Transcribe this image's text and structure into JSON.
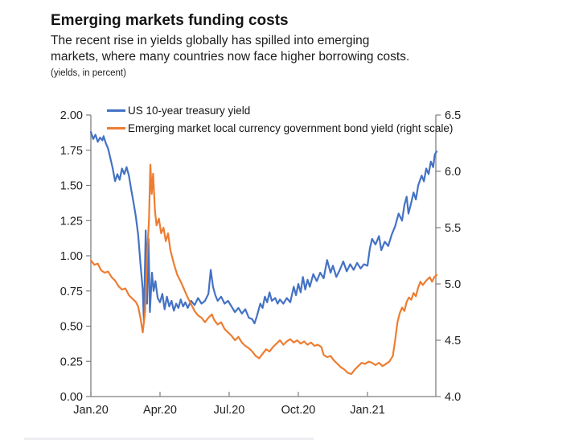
{
  "header": {
    "title": "Emerging markets funding costs",
    "subtitle_line1": "The recent rise in yields globally has spilled into emerging",
    "subtitle_line2": "markets, where many countries now face higher borrowing costs.",
    "note": "(yields, in percent)"
  },
  "legend": [
    {
      "label": "US 10-year treasury yield",
      "color": "#4472C4"
    },
    {
      "label": "Emerging market local currency government bond yield (right scale)",
      "color": "#ED7D31"
    }
  ],
  "chart_data": {
    "type": "line",
    "title": "Emerging markets funding costs",
    "x_unit": "months since Jan 2020",
    "grid": false,
    "legend_position": "top-left",
    "x_ticks": [
      {
        "m": 0,
        "label": "Jan.20"
      },
      {
        "m": 3,
        "label": "Apr.20"
      },
      {
        "m": 6,
        "label": "Jul.20"
      },
      {
        "m": 9,
        "label": "Oct.20"
      },
      {
        "m": 12,
        "label": "Jan.21"
      }
    ],
    "x_range_months": [
      0,
      15
    ],
    "left_axis": {
      "min": 0,
      "max": 2.0,
      "tick_values": [
        0,
        0.25,
        0.5,
        0.75,
        1.0,
        1.25,
        1.5,
        1.75,
        2.0
      ],
      "tick_labels": [
        "0.00",
        "0.25",
        "0.50",
        "0.75",
        "1.00",
        "1.25",
        "1.50",
        "1.75",
        "2.00"
      ]
    },
    "right_axis": {
      "min": 4.0,
      "max": 6.5,
      "tick_values": [
        4.0,
        4.5,
        5.0,
        5.5,
        6.0,
        6.5
      ],
      "tick_labels": [
        "4.0",
        "4.5",
        "5.0",
        "5.5",
        "6.0",
        "6.5"
      ]
    },
    "series": [
      {
        "name": "US 10-year treasury yield",
        "axis": "left",
        "color": "#4472C4",
        "points": [
          [
            0,
            1.88
          ],
          [
            0.1,
            1.83
          ],
          [
            0.2,
            1.86
          ],
          [
            0.3,
            1.81
          ],
          [
            0.4,
            1.84
          ],
          [
            0.5,
            1.82
          ],
          [
            0.55,
            1.85
          ],
          [
            0.65,
            1.8
          ],
          [
            0.75,
            1.76
          ],
          [
            0.85,
            1.69
          ],
          [
            0.95,
            1.62
          ],
          [
            1.05,
            1.53
          ],
          [
            1.15,
            1.58
          ],
          [
            1.25,
            1.54
          ],
          [
            1.35,
            1.62
          ],
          [
            1.45,
            1.58
          ],
          [
            1.55,
            1.63
          ],
          [
            1.65,
            1.57
          ],
          [
            1.75,
            1.47
          ],
          [
            1.85,
            1.38
          ],
          [
            1.95,
            1.28
          ],
          [
            2.05,
            1.15
          ],
          [
            2.15,
            0.95
          ],
          [
            2.25,
            0.76
          ],
          [
            2.3,
            0.54
          ],
          [
            2.38,
            1.18
          ],
          [
            2.44,
            0.66
          ],
          [
            2.5,
            1.12
          ],
          [
            2.56,
            0.6
          ],
          [
            2.65,
            0.88
          ],
          [
            2.72,
            0.75
          ],
          [
            2.8,
            0.82
          ],
          [
            2.9,
            0.7
          ],
          [
            3.0,
            0.67
          ],
          [
            3.1,
            0.73
          ],
          [
            3.2,
            0.62
          ],
          [
            3.3,
            0.71
          ],
          [
            3.4,
            0.64
          ],
          [
            3.5,
            0.68
          ],
          [
            3.6,
            0.61
          ],
          [
            3.7,
            0.66
          ],
          [
            3.8,
            0.63
          ],
          [
            3.9,
            0.69
          ],
          [
            4.0,
            0.64
          ],
          [
            4.1,
            0.67
          ],
          [
            4.2,
            0.63
          ],
          [
            4.35,
            0.68
          ],
          [
            4.5,
            0.65
          ],
          [
            4.65,
            0.7
          ],
          [
            4.8,
            0.66
          ],
          [
            4.95,
            0.68
          ],
          [
            5.1,
            0.73
          ],
          [
            5.2,
            0.9
          ],
          [
            5.3,
            0.78
          ],
          [
            5.4,
            0.72
          ],
          [
            5.5,
            0.68
          ],
          [
            5.65,
            0.71
          ],
          [
            5.8,
            0.66
          ],
          [
            5.95,
            0.68
          ],
          [
            6.1,
            0.64
          ],
          [
            6.25,
            0.6
          ],
          [
            6.4,
            0.63
          ],
          [
            6.55,
            0.59
          ],
          [
            6.7,
            0.62
          ],
          [
            6.85,
            0.56
          ],
          [
            7.0,
            0.55
          ],
          [
            7.1,
            0.52
          ],
          [
            7.2,
            0.57
          ],
          [
            7.35,
            0.66
          ],
          [
            7.45,
            0.63
          ],
          [
            7.55,
            0.71
          ],
          [
            7.65,
            0.67
          ],
          [
            7.75,
            0.74
          ],
          [
            7.85,
            0.68
          ],
          [
            8.0,
            0.7
          ],
          [
            8.1,
            0.66
          ],
          [
            8.2,
            0.69
          ],
          [
            8.35,
            0.66
          ],
          [
            8.5,
            0.7
          ],
          [
            8.65,
            0.67
          ],
          [
            8.8,
            0.78
          ],
          [
            8.9,
            0.72
          ],
          [
            9.0,
            0.8
          ],
          [
            9.1,
            0.74
          ],
          [
            9.2,
            0.85
          ],
          [
            9.3,
            0.76
          ],
          [
            9.4,
            0.83
          ],
          [
            9.5,
            0.78
          ],
          [
            9.65,
            0.87
          ],
          [
            9.8,
            0.82
          ],
          [
            9.95,
            0.88
          ],
          [
            10.1,
            0.84
          ],
          [
            10.25,
            0.97
          ],
          [
            10.4,
            0.88
          ],
          [
            10.5,
            0.93
          ],
          [
            10.65,
            0.85
          ],
          [
            10.8,
            0.9
          ],
          [
            10.95,
            0.96
          ],
          [
            11.1,
            0.89
          ],
          [
            11.25,
            0.94
          ],
          [
            11.4,
            0.9
          ],
          [
            11.55,
            0.95
          ],
          [
            11.7,
            0.91
          ],
          [
            11.85,
            0.94
          ],
          [
            12.0,
            0.93
          ],
          [
            12.1,
            1.05
          ],
          [
            12.2,
            1.12
          ],
          [
            12.35,
            1.08
          ],
          [
            12.5,
            1.14
          ],
          [
            12.6,
            1.04
          ],
          [
            12.75,
            1.1
          ],
          [
            12.9,
            1.07
          ],
          [
            13.05,
            1.15
          ],
          [
            13.2,
            1.21
          ],
          [
            13.35,
            1.3
          ],
          [
            13.5,
            1.25
          ],
          [
            13.6,
            1.36
          ],
          [
            13.7,
            1.42
          ],
          [
            13.78,
            1.3
          ],
          [
            13.9,
            1.38
          ],
          [
            14.0,
            1.45
          ],
          [
            14.1,
            1.4
          ],
          [
            14.2,
            1.5
          ],
          [
            14.35,
            1.57
          ],
          [
            14.45,
            1.53
          ],
          [
            14.55,
            1.62
          ],
          [
            14.65,
            1.58
          ],
          [
            14.75,
            1.67
          ],
          [
            14.85,
            1.63
          ],
          [
            14.92,
            1.72
          ],
          [
            15.0,
            1.74
          ]
        ]
      },
      {
        "name": "Emerging market local currency government bond yield",
        "axis": "right",
        "color": "#ED7D31",
        "points": [
          [
            0,
            5.21
          ],
          [
            0.15,
            5.17
          ],
          [
            0.3,
            5.18
          ],
          [
            0.45,
            5.12
          ],
          [
            0.6,
            5.1
          ],
          [
            0.75,
            5.11
          ],
          [
            0.9,
            5.06
          ],
          [
            1.05,
            5.03
          ],
          [
            1.2,
            4.98
          ],
          [
            1.35,
            4.95
          ],
          [
            1.5,
            4.96
          ],
          [
            1.65,
            4.9
          ],
          [
            1.8,
            4.87
          ],
          [
            1.95,
            4.84
          ],
          [
            2.05,
            4.8
          ],
          [
            2.15,
            4.7
          ],
          [
            2.25,
            4.57
          ],
          [
            2.35,
            4.75
          ],
          [
            2.45,
            5.3
          ],
          [
            2.52,
            5.55
          ],
          [
            2.58,
            6.06
          ],
          [
            2.64,
            5.8
          ],
          [
            2.7,
            5.98
          ],
          [
            2.78,
            5.65
          ],
          [
            2.85,
            5.52
          ],
          [
            2.95,
            5.58
          ],
          [
            3.05,
            5.45
          ],
          [
            3.15,
            5.5
          ],
          [
            3.25,
            5.38
          ],
          [
            3.35,
            5.45
          ],
          [
            3.45,
            5.3
          ],
          [
            3.6,
            5.18
          ],
          [
            3.75,
            5.08
          ],
          [
            3.9,
            5.02
          ],
          [
            4.05,
            4.95
          ],
          [
            4.2,
            4.88
          ],
          [
            4.35,
            4.82
          ],
          [
            4.5,
            4.76
          ],
          [
            4.65,
            4.72
          ],
          [
            4.8,
            4.7
          ],
          [
            4.95,
            4.66
          ],
          [
            5.1,
            4.7
          ],
          [
            5.25,
            4.73
          ],
          [
            5.35,
            4.68
          ],
          [
            5.5,
            4.64
          ],
          [
            5.65,
            4.66
          ],
          [
            5.8,
            4.6
          ],
          [
            5.95,
            4.57
          ],
          [
            6.1,
            4.54
          ],
          [
            6.25,
            4.5
          ],
          [
            6.4,
            4.53
          ],
          [
            6.55,
            4.48
          ],
          [
            6.7,
            4.45
          ],
          [
            6.85,
            4.43
          ],
          [
            7.0,
            4.4
          ],
          [
            7.15,
            4.36
          ],
          [
            7.3,
            4.34
          ],
          [
            7.45,
            4.38
          ],
          [
            7.6,
            4.42
          ],
          [
            7.75,
            4.4
          ],
          [
            7.9,
            4.44
          ],
          [
            8.05,
            4.47
          ],
          [
            8.2,
            4.5
          ],
          [
            8.35,
            4.46
          ],
          [
            8.5,
            4.49
          ],
          [
            8.65,
            4.51
          ],
          [
            8.8,
            4.48
          ],
          [
            8.95,
            4.5
          ],
          [
            9.1,
            4.47
          ],
          [
            9.25,
            4.49
          ],
          [
            9.4,
            4.46
          ],
          [
            9.55,
            4.48
          ],
          [
            9.7,
            4.45
          ],
          [
            9.85,
            4.46
          ],
          [
            10.0,
            4.44
          ],
          [
            10.1,
            4.37
          ],
          [
            10.25,
            4.35
          ],
          [
            10.4,
            4.36
          ],
          [
            10.55,
            4.32
          ],
          [
            10.7,
            4.29
          ],
          [
            10.85,
            4.26
          ],
          [
            11.0,
            4.24
          ],
          [
            11.15,
            4.21
          ],
          [
            11.3,
            4.2
          ],
          [
            11.45,
            4.24
          ],
          [
            11.6,
            4.27
          ],
          [
            11.75,
            4.3
          ],
          [
            11.9,
            4.29
          ],
          [
            12.05,
            4.31
          ],
          [
            12.2,
            4.3
          ],
          [
            12.35,
            4.28
          ],
          [
            12.5,
            4.3
          ],
          [
            12.65,
            4.27
          ],
          [
            12.8,
            4.29
          ],
          [
            12.95,
            4.31
          ],
          [
            13.1,
            4.36
          ],
          [
            13.2,
            4.5
          ],
          [
            13.3,
            4.66
          ],
          [
            13.4,
            4.74
          ],
          [
            13.5,
            4.79
          ],
          [
            13.6,
            4.76
          ],
          [
            13.7,
            4.84
          ],
          [
            13.8,
            4.88
          ],
          [
            13.9,
            4.86
          ],
          [
            14.0,
            4.92
          ],
          [
            14.1,
            4.89
          ],
          [
            14.2,
            4.97
          ],
          [
            14.3,
            5.02
          ],
          [
            14.4,
            4.99
          ],
          [
            14.55,
            5.03
          ],
          [
            14.7,
            5.06
          ],
          [
            14.8,
            5.02
          ],
          [
            14.9,
            5.06
          ],
          [
            15.0,
            5.08
          ]
        ]
      }
    ]
  }
}
